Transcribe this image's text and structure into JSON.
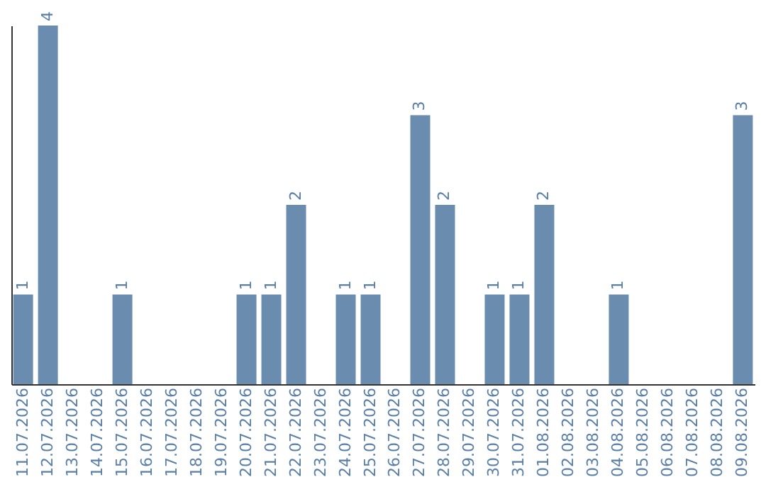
{
  "chart_data": {
    "type": "bar",
    "categories": [
      "11.07.2026",
      "12.07.2026",
      "13.07.2026",
      "14.07.2026",
      "15.07.2026",
      "16.07.2026",
      "17.07.2026",
      "18.07.2026",
      "19.07.2026",
      "20.07.2026",
      "21.07.2026",
      "22.07.2026",
      "23.07.2026",
      "24.07.2026",
      "25.07.2026",
      "26.07.2026",
      "27.07.2026",
      "28.07.2026",
      "29.07.2026",
      "30.07.2026",
      "31.07.2026",
      "01.08.2026",
      "02.08.2026",
      "03.08.2026",
      "04.08.2026",
      "05.08.2026",
      "06.08.2026",
      "07.08.2026",
      "08.08.2026",
      "09.08.2026"
    ],
    "values": [
      1,
      4,
      0,
      0,
      1,
      0,
      0,
      0,
      0,
      1,
      1,
      2,
      0,
      1,
      1,
      0,
      3,
      2,
      0,
      1,
      1,
      2,
      0,
      0,
      1,
      0,
      0,
      0,
      0,
      3
    ],
    "value_labels": [
      "1",
      "4",
      null,
      null,
      "1",
      null,
      null,
      null,
      null,
      "1",
      "1",
      "2",
      null,
      "1",
      "1",
      null,
      "3",
      "2",
      null,
      "1",
      "1",
      "2",
      null,
      null,
      "1",
      null,
      null,
      null,
      null,
      "3"
    ],
    "color": "#6a8caf",
    "grid": false,
    "tick_labels": "x"
  }
}
